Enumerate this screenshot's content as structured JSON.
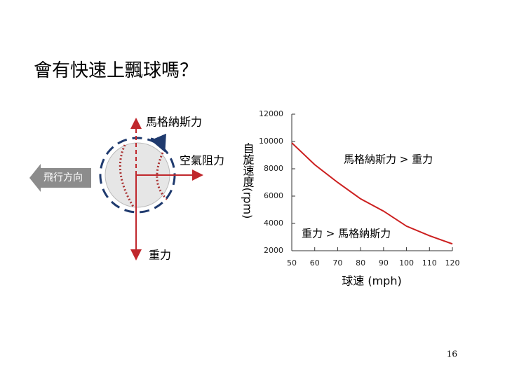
{
  "slide": {
    "title": "會有快速上飄球嗎？",
    "page_number": "16"
  },
  "diagram": {
    "labels": {
      "magnus": "馬格納斯力",
      "drag": "空氣阻力",
      "gravity": "重力",
      "direction": "飛行方向"
    }
  },
  "chart_data": {
    "type": "line",
    "x_label": "球速 (mph)",
    "y_label": "自旋速度(rpm)",
    "annotations": [
      "馬格納斯力 > 重力",
      "重力 > 馬格納斯力"
    ],
    "x": [
      50,
      60,
      70,
      80,
      90,
      100,
      110,
      120
    ],
    "values": [
      9900,
      8300,
      7000,
      5800,
      4900,
      3800,
      3100,
      2500
    ],
    "color": "#cc1f1f",
    "xlim": [
      50,
      120
    ],
    "xticks": [
      50,
      60,
      70,
      80,
      90,
      100,
      110,
      120
    ],
    "ylim": [
      2000,
      12000
    ],
    "yticks": [
      2000,
      4000,
      6000,
      8000,
      10000,
      12000
    ],
    "grid": false
  }
}
